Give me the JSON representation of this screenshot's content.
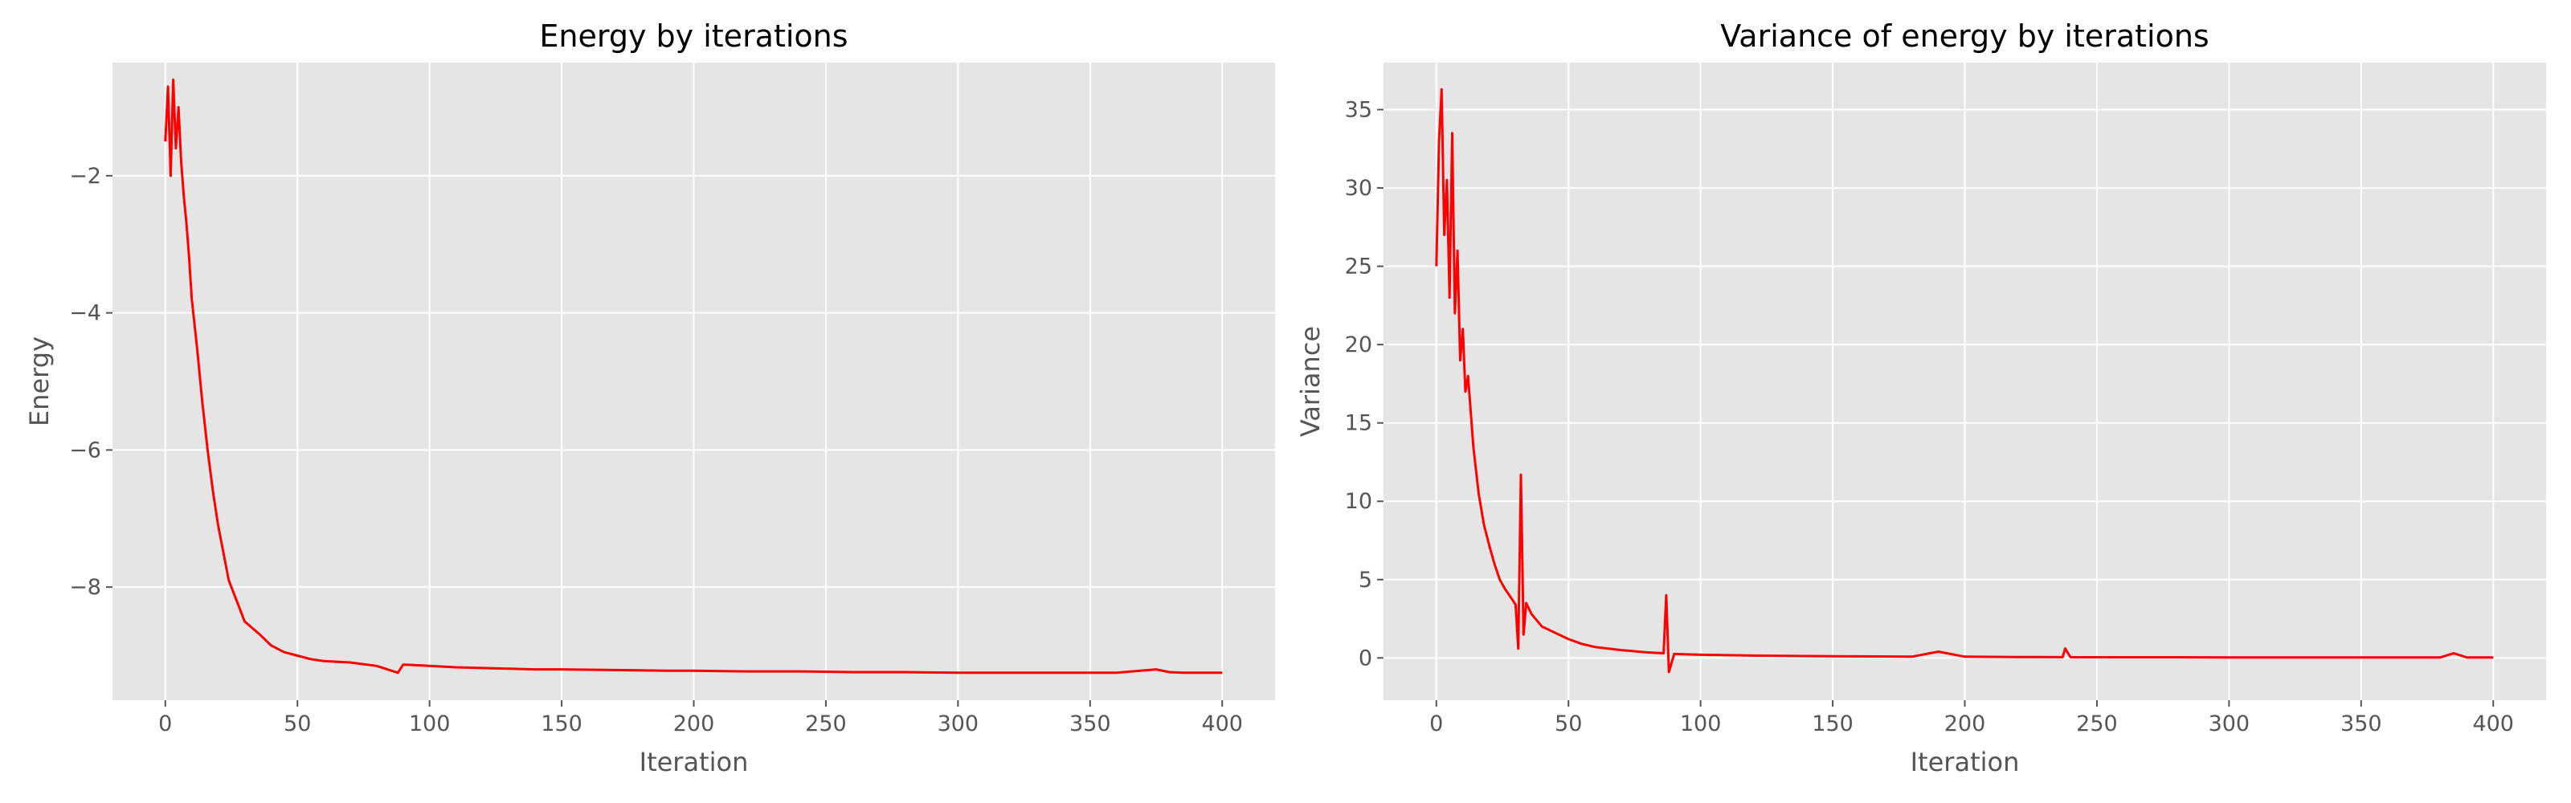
{
  "figure": {
    "background": "#ffffff",
    "panel_background": "#e5e5e5",
    "grid_color": "#ffffff",
    "tick_color": "#555555",
    "line_color": "#ff0000"
  },
  "chart_data": [
    {
      "type": "line",
      "title": "Energy by iterations",
      "xlabel": "Iteration",
      "ylabel": "Energy",
      "xlim": [
        -20,
        420
      ],
      "ylim": [
        -9.65,
        -0.35
      ],
      "xticks": [
        0,
        50,
        100,
        150,
        200,
        250,
        300,
        350,
        400
      ],
      "xtick_labels": [
        "0",
        "50",
        "100",
        "150",
        "200",
        "250",
        "300",
        "350",
        "400"
      ],
      "yticks": [
        -8,
        -6,
        -4,
        -2
      ],
      "ytick_labels": [
        "−8",
        "−6",
        "−4",
        "−2"
      ],
      "grid": true,
      "legend": "none",
      "series": [
        {
          "color": "#ff0000",
          "x": [
            0,
            1,
            2,
            3,
            4,
            5,
            6,
            7,
            8,
            9,
            10,
            12,
            14,
            16,
            18,
            20,
            22,
            24,
            26,
            28,
            30,
            33,
            36,
            40,
            45,
            50,
            55,
            60,
            70,
            80,
            88,
            90,
            100,
            110,
            120,
            130,
            140,
            150,
            170,
            190,
            200,
            220,
            240,
            260,
            280,
            300,
            320,
            340,
            360,
            375,
            380,
            385,
            390,
            400
          ],
          "y": [
            -1.5,
            -0.7,
            -2.0,
            -0.6,
            -1.6,
            -1.0,
            -1.8,
            -2.3,
            -2.7,
            -3.2,
            -3.8,
            -4.5,
            -5.3,
            -6.0,
            -6.6,
            -7.1,
            -7.5,
            -7.9,
            -8.1,
            -8.3,
            -8.5,
            -8.6,
            -8.7,
            -8.85,
            -8.95,
            -9.0,
            -9.05,
            -9.08,
            -9.1,
            -9.15,
            -9.25,
            -9.13,
            -9.15,
            -9.17,
            -9.18,
            -9.19,
            -9.2,
            -9.2,
            -9.21,
            -9.22,
            -9.22,
            -9.23,
            -9.23,
            -9.24,
            -9.24,
            -9.25,
            -9.25,
            -9.25,
            -9.25,
            -9.2,
            -9.24,
            -9.25,
            -9.25,
            -9.25
          ]
        }
      ]
    },
    {
      "type": "line",
      "title": "Variance of energy by iterations",
      "xlabel": "Iteration",
      "ylabel": "Variance",
      "xlim": [
        -20,
        420
      ],
      "ylim": [
        -2.7,
        38.0
      ],
      "xticks": [
        0,
        50,
        100,
        150,
        200,
        250,
        300,
        350,
        400
      ],
      "xtick_labels": [
        "0",
        "50",
        "100",
        "150",
        "200",
        "250",
        "300",
        "350",
        "400"
      ],
      "yticks": [
        0,
        5,
        10,
        15,
        20,
        25,
        30,
        35
      ],
      "ytick_labels": [
        "0",
        "5",
        "10",
        "15",
        "20",
        "25",
        "30",
        "35"
      ],
      "grid": true,
      "legend": "none",
      "series": [
        {
          "color": "#ff0000",
          "x": [
            0,
            1,
            2,
            3,
            4,
            5,
            6,
            7,
            8,
            9,
            10,
            11,
            12,
            14,
            16,
            18,
            20,
            22,
            24,
            26,
            28,
            30,
            31,
            32,
            33,
            34,
            36,
            40,
            45,
            50,
            55,
            60,
            70,
            80,
            86,
            87,
            88,
            90,
            100,
            120,
            140,
            160,
            180,
            190,
            200,
            220,
            237,
            238,
            240,
            260,
            280,
            300,
            320,
            340,
            360,
            380,
            385,
            390,
            400
          ],
          "y": [
            25,
            33,
            36.3,
            27,
            30.5,
            23,
            33.5,
            22,
            26,
            19,
            21,
            17,
            18,
            13.5,
            10.5,
            8.5,
            7.2,
            6.0,
            5.0,
            4.4,
            3.9,
            3.4,
            0.6,
            11.7,
            1.5,
            3.5,
            2.8,
            2.0,
            1.6,
            1.2,
            0.9,
            0.7,
            0.5,
            0.35,
            0.3,
            4.0,
            -0.9,
            0.25,
            0.2,
            0.15,
            0.12,
            0.1,
            0.08,
            0.4,
            0.08,
            0.06,
            0.05,
            0.6,
            0.05,
            0.04,
            0.04,
            0.03,
            0.03,
            0.03,
            0.03,
            0.03,
            0.3,
            0.03,
            0.03
          ]
        }
      ]
    }
  ]
}
